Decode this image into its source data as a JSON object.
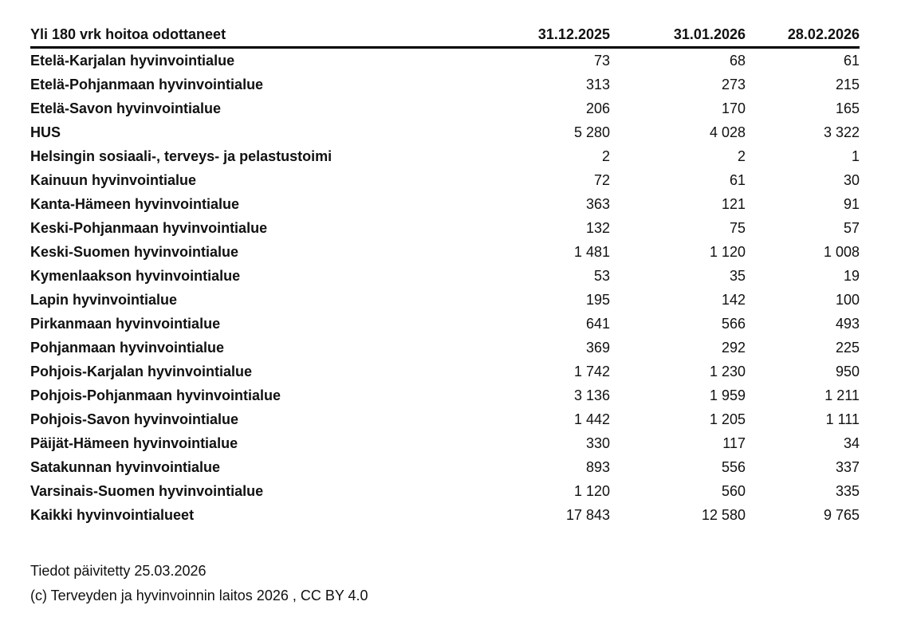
{
  "table": {
    "header": {
      "title": "Yli 180 vrk hoitoa odottaneet",
      "columns": [
        "31.12.2025",
        "31.01.2026",
        "28.02.2026"
      ]
    },
    "rows": [
      {
        "name": "Etelä-Karjalan hyvinvointialue",
        "values": [
          "73",
          "68",
          "61"
        ]
      },
      {
        "name": "Etelä-Pohjanmaan hyvinvointialue",
        "values": [
          "313",
          "273",
          "215"
        ]
      },
      {
        "name": "Etelä-Savon hyvinvointialue",
        "values": [
          "206",
          "170",
          "165"
        ]
      },
      {
        "name": "HUS",
        "values": [
          "5 280",
          "4 028",
          "3 322"
        ]
      },
      {
        "name": "Helsingin sosiaali-, terveys- ja pelastustoimi",
        "values": [
          "2",
          "2",
          "1"
        ]
      },
      {
        "name": "Kainuun hyvinvointialue",
        "values": [
          "72",
          "61",
          "30"
        ]
      },
      {
        "name": "Kanta-Hämeen hyvinvointialue",
        "values": [
          "363",
          "121",
          "91"
        ]
      },
      {
        "name": "Keski-Pohjanmaan hyvinvointialue",
        "values": [
          "132",
          "75",
          "57"
        ]
      },
      {
        "name": "Keski-Suomen hyvinvointialue",
        "values": [
          "1 481",
          "1 120",
          "1 008"
        ]
      },
      {
        "name": "Kymenlaakson hyvinvointialue",
        "values": [
          "53",
          "35",
          "19"
        ]
      },
      {
        "name": "Lapin hyvinvointialue",
        "values": [
          "195",
          "142",
          "100"
        ]
      },
      {
        "name": "Pirkanmaan hyvinvointialue",
        "values": [
          "641",
          "566",
          "493"
        ]
      },
      {
        "name": "Pohjanmaan hyvinvointialue",
        "values": [
          "369",
          "292",
          "225"
        ]
      },
      {
        "name": "Pohjois-Karjalan hyvinvointialue",
        "values": [
          "1 742",
          "1 230",
          "950"
        ]
      },
      {
        "name": "Pohjois-Pohjanmaan hyvinvointialue",
        "values": [
          "3 136",
          "1 959",
          "1 211"
        ]
      },
      {
        "name": "Pohjois-Savon hyvinvointialue",
        "values": [
          "1 442",
          "1 205",
          "1 111"
        ]
      },
      {
        "name": "Päijät-Hämeen hyvinvointialue",
        "values": [
          "330",
          "117",
          "34"
        ]
      },
      {
        "name": "Satakunnan hyvinvointialue",
        "values": [
          "893",
          "556",
          "337"
        ]
      },
      {
        "name": "Varsinais-Suomen hyvinvointialue",
        "values": [
          "1 120",
          "560",
          "335"
        ]
      },
      {
        "name": "Kaikki hyvinvointialueet",
        "values": [
          "17 843",
          "12 580",
          "9 765"
        ]
      }
    ]
  },
  "footer": {
    "updated": "Tiedot päivitetty 25.03.2026",
    "copyright": "(c) Terveyden ja hyvinvoinnin laitos 2026 , CC BY 4.0"
  },
  "colors": {
    "text": "#111111",
    "rule": "#000000",
    "background": "#ffffff"
  }
}
